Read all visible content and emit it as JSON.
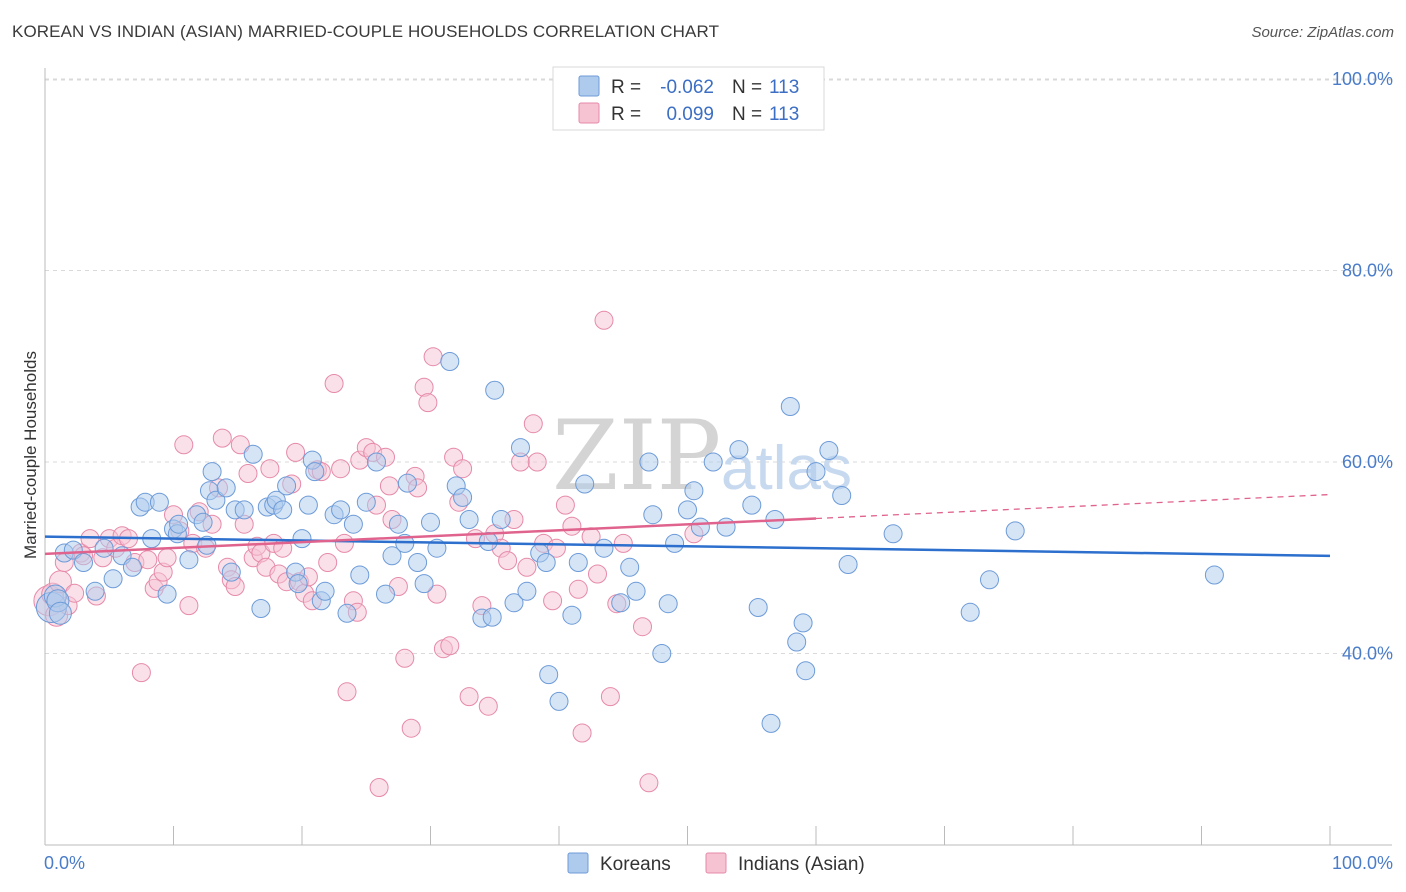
{
  "title": "KOREAN VS INDIAN (ASIAN) MARRIED-COUPLE HOUSEHOLDS CORRELATION CHART",
  "source": "Source: ZipAtlas.com",
  "watermark": {
    "zip": "ZIP",
    "atlas": "atlas"
  },
  "legend": {
    "r_label": "R =",
    "n_label": "N =",
    "entries": [
      {
        "r": "-0.062",
        "n": "113"
      },
      {
        "r": "0.099",
        "n": "113"
      }
    ]
  },
  "bottom_legend": [
    "Koreans",
    "Indians (Asian)"
  ],
  "colors": {
    "koreans_fill": "#aecbee",
    "koreans_stroke": "#6d9bd8",
    "koreans_line": "#2c6fcd",
    "indians_fill": "#f6c3d3",
    "indians_stroke": "#e68aa9",
    "indians_line": "#e0638e",
    "grid": "#d9d9d9",
    "tick_label": "#4a7cc9"
  },
  "chart_data": {
    "type": "scatter",
    "title": "KOREAN VS INDIAN (ASIAN) MARRIED-COUPLE HOUSEHOLDS CORRELATION CHART",
    "xlabel": "",
    "ylabel": "Married-couple Households",
    "xlim": [
      0,
      100
    ],
    "ylim": [
      20,
      100
    ],
    "x_tick_labels": [
      "0.0%",
      "100.0%"
    ],
    "y_ticks": [
      40,
      60,
      80,
      100
    ],
    "y_tick_labels": [
      "40.0%",
      "60.0%",
      "80.0%",
      "100.0%"
    ],
    "grid": "horizontal dashed",
    "legend_position": "top-center",
    "series": [
      {
        "name": "Koreans",
        "r": -0.062,
        "n": 113,
        "trend": {
          "x": [
            0,
            100
          ],
          "y": [
            52.2,
            50.2
          ],
          "dashed_from": null
        },
        "points": [
          [
            0.5,
            44.8
          ],
          [
            0.8,
            46.0
          ],
          [
            1.0,
            45.5
          ],
          [
            1.2,
            44.2
          ],
          [
            1.5,
            50.5
          ],
          [
            2.2,
            50.8
          ],
          [
            3.0,
            49.5
          ],
          [
            3.9,
            46.5
          ],
          [
            4.6,
            51.0
          ],
          [
            5.3,
            47.8
          ],
          [
            6.0,
            50.2
          ],
          [
            6.8,
            49.0
          ],
          [
            7.4,
            55.3
          ],
          [
            7.8,
            55.8
          ],
          [
            8.3,
            52.0
          ],
          [
            8.9,
            55.8
          ],
          [
            9.5,
            46.2
          ],
          [
            10.0,
            53.0
          ],
          [
            10.3,
            52.5
          ],
          [
            10.4,
            53.5
          ],
          [
            11.2,
            49.8
          ],
          [
            11.8,
            54.5
          ],
          [
            12.3,
            53.7
          ],
          [
            12.6,
            51.3
          ],
          [
            12.8,
            57.0
          ],
          [
            13.0,
            59.0
          ],
          [
            13.3,
            56.0
          ],
          [
            14.1,
            57.3
          ],
          [
            14.5,
            48.5
          ],
          [
            14.8,
            55.0
          ],
          [
            15.5,
            55.0
          ],
          [
            16.2,
            60.8
          ],
          [
            16.8,
            44.7
          ],
          [
            17.3,
            55.3
          ],
          [
            17.8,
            55.5
          ],
          [
            18.0,
            56.0
          ],
          [
            18.5,
            55.0
          ],
          [
            18.8,
            57.5
          ],
          [
            19.5,
            48.5
          ],
          [
            19.7,
            47.3
          ],
          [
            20.0,
            52.0
          ],
          [
            20.5,
            55.5
          ],
          [
            20.8,
            60.2
          ],
          [
            21.0,
            59.0
          ],
          [
            21.5,
            45.5
          ],
          [
            21.8,
            46.5
          ],
          [
            22.5,
            54.5
          ],
          [
            23.0,
            55.0
          ],
          [
            23.5,
            44.2
          ],
          [
            24.0,
            53.5
          ],
          [
            24.5,
            48.2
          ],
          [
            25.0,
            55.8
          ],
          [
            25.8,
            60.0
          ],
          [
            26.5,
            46.2
          ],
          [
            27.0,
            50.2
          ],
          [
            27.5,
            53.5
          ],
          [
            28.0,
            51.5
          ],
          [
            28.2,
            57.8
          ],
          [
            29.0,
            49.5
          ],
          [
            29.5,
            47.3
          ],
          [
            30.0,
            53.7
          ],
          [
            30.5,
            51.0
          ],
          [
            31.5,
            70.5
          ],
          [
            32.0,
            57.5
          ],
          [
            32.5,
            56.3
          ],
          [
            33.0,
            54.0
          ],
          [
            34.0,
            43.7
          ],
          [
            34.5,
            51.7
          ],
          [
            34.8,
            43.8
          ],
          [
            35.0,
            67.5
          ],
          [
            35.5,
            54.0
          ],
          [
            36.5,
            45.3
          ],
          [
            37.0,
            61.5
          ],
          [
            37.5,
            46.5
          ],
          [
            38.5,
            50.5
          ],
          [
            39.0,
            49.5
          ],
          [
            39.2,
            37.8
          ],
          [
            40.0,
            35.0
          ],
          [
            41.0,
            44.0
          ],
          [
            41.5,
            49.5
          ],
          [
            42.0,
            57.7
          ],
          [
            43.5,
            51.0
          ],
          [
            44.8,
            45.3
          ],
          [
            45.5,
            49.0
          ],
          [
            46.0,
            46.5
          ],
          [
            47.0,
            60.0
          ],
          [
            47.3,
            54.5
          ],
          [
            48.0,
            40.0
          ],
          [
            48.5,
            45.2
          ],
          [
            49.0,
            51.5
          ],
          [
            50.0,
            55.0
          ],
          [
            50.5,
            57.0
          ],
          [
            51.0,
            53.2
          ],
          [
            52.0,
            60.0
          ],
          [
            53.0,
            53.2
          ],
          [
            54.0,
            61.3
          ],
          [
            55.0,
            55.5
          ],
          [
            55.5,
            44.8
          ],
          [
            56.5,
            32.7
          ],
          [
            56.8,
            54.0
          ],
          [
            58.0,
            65.8
          ],
          [
            58.5,
            41.2
          ],
          [
            59.0,
            43.2
          ],
          [
            59.2,
            38.2
          ],
          [
            60.0,
            59.0
          ],
          [
            61.0,
            61.2
          ],
          [
            62.0,
            56.5
          ],
          [
            62.5,
            49.3
          ],
          [
            66.0,
            52.5
          ],
          [
            72.0,
            44.3
          ],
          [
            73.5,
            47.7
          ],
          [
            75.5,
            52.8
          ],
          [
            91.0,
            48.2
          ]
        ]
      },
      {
        "name": "Indians (Asian)",
        "r": 0.099,
        "n": 113,
        "trend": {
          "x": [
            0,
            60,
            100
          ],
          "y": [
            50.4,
            54.1,
            56.6
          ],
          "dashed_from": 60
        },
        "points": [
          [
            0.3,
            45.5
          ],
          [
            0.6,
            46.2
          ],
          [
            0.9,
            44.0
          ],
          [
            1.2,
            47.5
          ],
          [
            1.5,
            49.5
          ],
          [
            1.8,
            45.0
          ],
          [
            2.3,
            46.3
          ],
          [
            2.8,
            50.5
          ],
          [
            3.0,
            50.2
          ],
          [
            3.5,
            52.0
          ],
          [
            4.0,
            46.0
          ],
          [
            4.5,
            50.0
          ],
          [
            5.0,
            52.0
          ],
          [
            5.5,
            51.0
          ],
          [
            6.0,
            52.3
          ],
          [
            6.5,
            52.0
          ],
          [
            7.0,
            49.5
          ],
          [
            7.5,
            38.0
          ],
          [
            8.0,
            49.8
          ],
          [
            8.5,
            46.8
          ],
          [
            8.8,
            47.5
          ],
          [
            9.2,
            48.5
          ],
          [
            9.5,
            50.0
          ],
          [
            10.0,
            54.5
          ],
          [
            10.5,
            52.8
          ],
          [
            10.8,
            61.8
          ],
          [
            11.2,
            45.0
          ],
          [
            11.5,
            51.5
          ],
          [
            12.0,
            54.8
          ],
          [
            12.5,
            51.0
          ],
          [
            13.0,
            53.5
          ],
          [
            13.5,
            57.3
          ],
          [
            13.8,
            62.5
          ],
          [
            14.2,
            49.0
          ],
          [
            14.5,
            47.7
          ],
          [
            14.8,
            47.0
          ],
          [
            15.2,
            61.8
          ],
          [
            15.5,
            53.5
          ],
          [
            15.8,
            58.8
          ],
          [
            16.2,
            50.0
          ],
          [
            16.5,
            51.2
          ],
          [
            16.8,
            50.5
          ],
          [
            17.2,
            49.0
          ],
          [
            17.5,
            59.3
          ],
          [
            17.8,
            51.5
          ],
          [
            18.2,
            48.3
          ],
          [
            18.5,
            51.0
          ],
          [
            18.8,
            47.5
          ],
          [
            19.2,
            57.7
          ],
          [
            19.5,
            61.0
          ],
          [
            19.8,
            47.5
          ],
          [
            20.2,
            46.3
          ],
          [
            20.5,
            48.0
          ],
          [
            20.8,
            45.5
          ],
          [
            21.2,
            59.2
          ],
          [
            21.5,
            59.0
          ],
          [
            22.0,
            49.5
          ],
          [
            22.5,
            68.2
          ],
          [
            23.0,
            59.3
          ],
          [
            23.3,
            51.5
          ],
          [
            23.5,
            36.0
          ],
          [
            24.0,
            45.5
          ],
          [
            24.3,
            44.3
          ],
          [
            24.5,
            60.2
          ],
          [
            25.0,
            61.5
          ],
          [
            25.5,
            61.0
          ],
          [
            25.8,
            55.5
          ],
          [
            26.0,
            26.0
          ],
          [
            26.5,
            60.5
          ],
          [
            26.8,
            57.5
          ],
          [
            27.0,
            54.0
          ],
          [
            27.5,
            47.0
          ],
          [
            28.0,
            39.5
          ],
          [
            28.5,
            32.2
          ],
          [
            28.8,
            58.5
          ],
          [
            29.0,
            57.3
          ],
          [
            29.5,
            67.8
          ],
          [
            29.8,
            66.2
          ],
          [
            30.2,
            71.0
          ],
          [
            30.5,
            46.2
          ],
          [
            31.0,
            40.5
          ],
          [
            31.5,
            40.8
          ],
          [
            31.8,
            60.5
          ],
          [
            32.2,
            55.8
          ],
          [
            32.5,
            59.3
          ],
          [
            33.0,
            35.5
          ],
          [
            33.5,
            52.0
          ],
          [
            34.0,
            45.0
          ],
          [
            34.5,
            34.5
          ],
          [
            35.0,
            52.5
          ],
          [
            35.5,
            51.0
          ],
          [
            36.0,
            49.7
          ],
          [
            36.5,
            54.0
          ],
          [
            37.0,
            60.0
          ],
          [
            37.5,
            49.0
          ],
          [
            38.0,
            64.0
          ],
          [
            38.3,
            60.0
          ],
          [
            38.8,
            51.5
          ],
          [
            39.5,
            45.5
          ],
          [
            39.8,
            51.0
          ],
          [
            40.5,
            55.5
          ],
          [
            41.0,
            53.3
          ],
          [
            41.5,
            46.7
          ],
          [
            41.8,
            31.7
          ],
          [
            42.5,
            52.2
          ],
          [
            43.0,
            48.3
          ],
          [
            43.5,
            74.8
          ],
          [
            44.0,
            35.5
          ],
          [
            44.5,
            45.2
          ],
          [
            45.0,
            51.5
          ],
          [
            46.5,
            42.8
          ],
          [
            47.0,
            26.5
          ],
          [
            50.5,
            52.5
          ]
        ]
      }
    ]
  }
}
